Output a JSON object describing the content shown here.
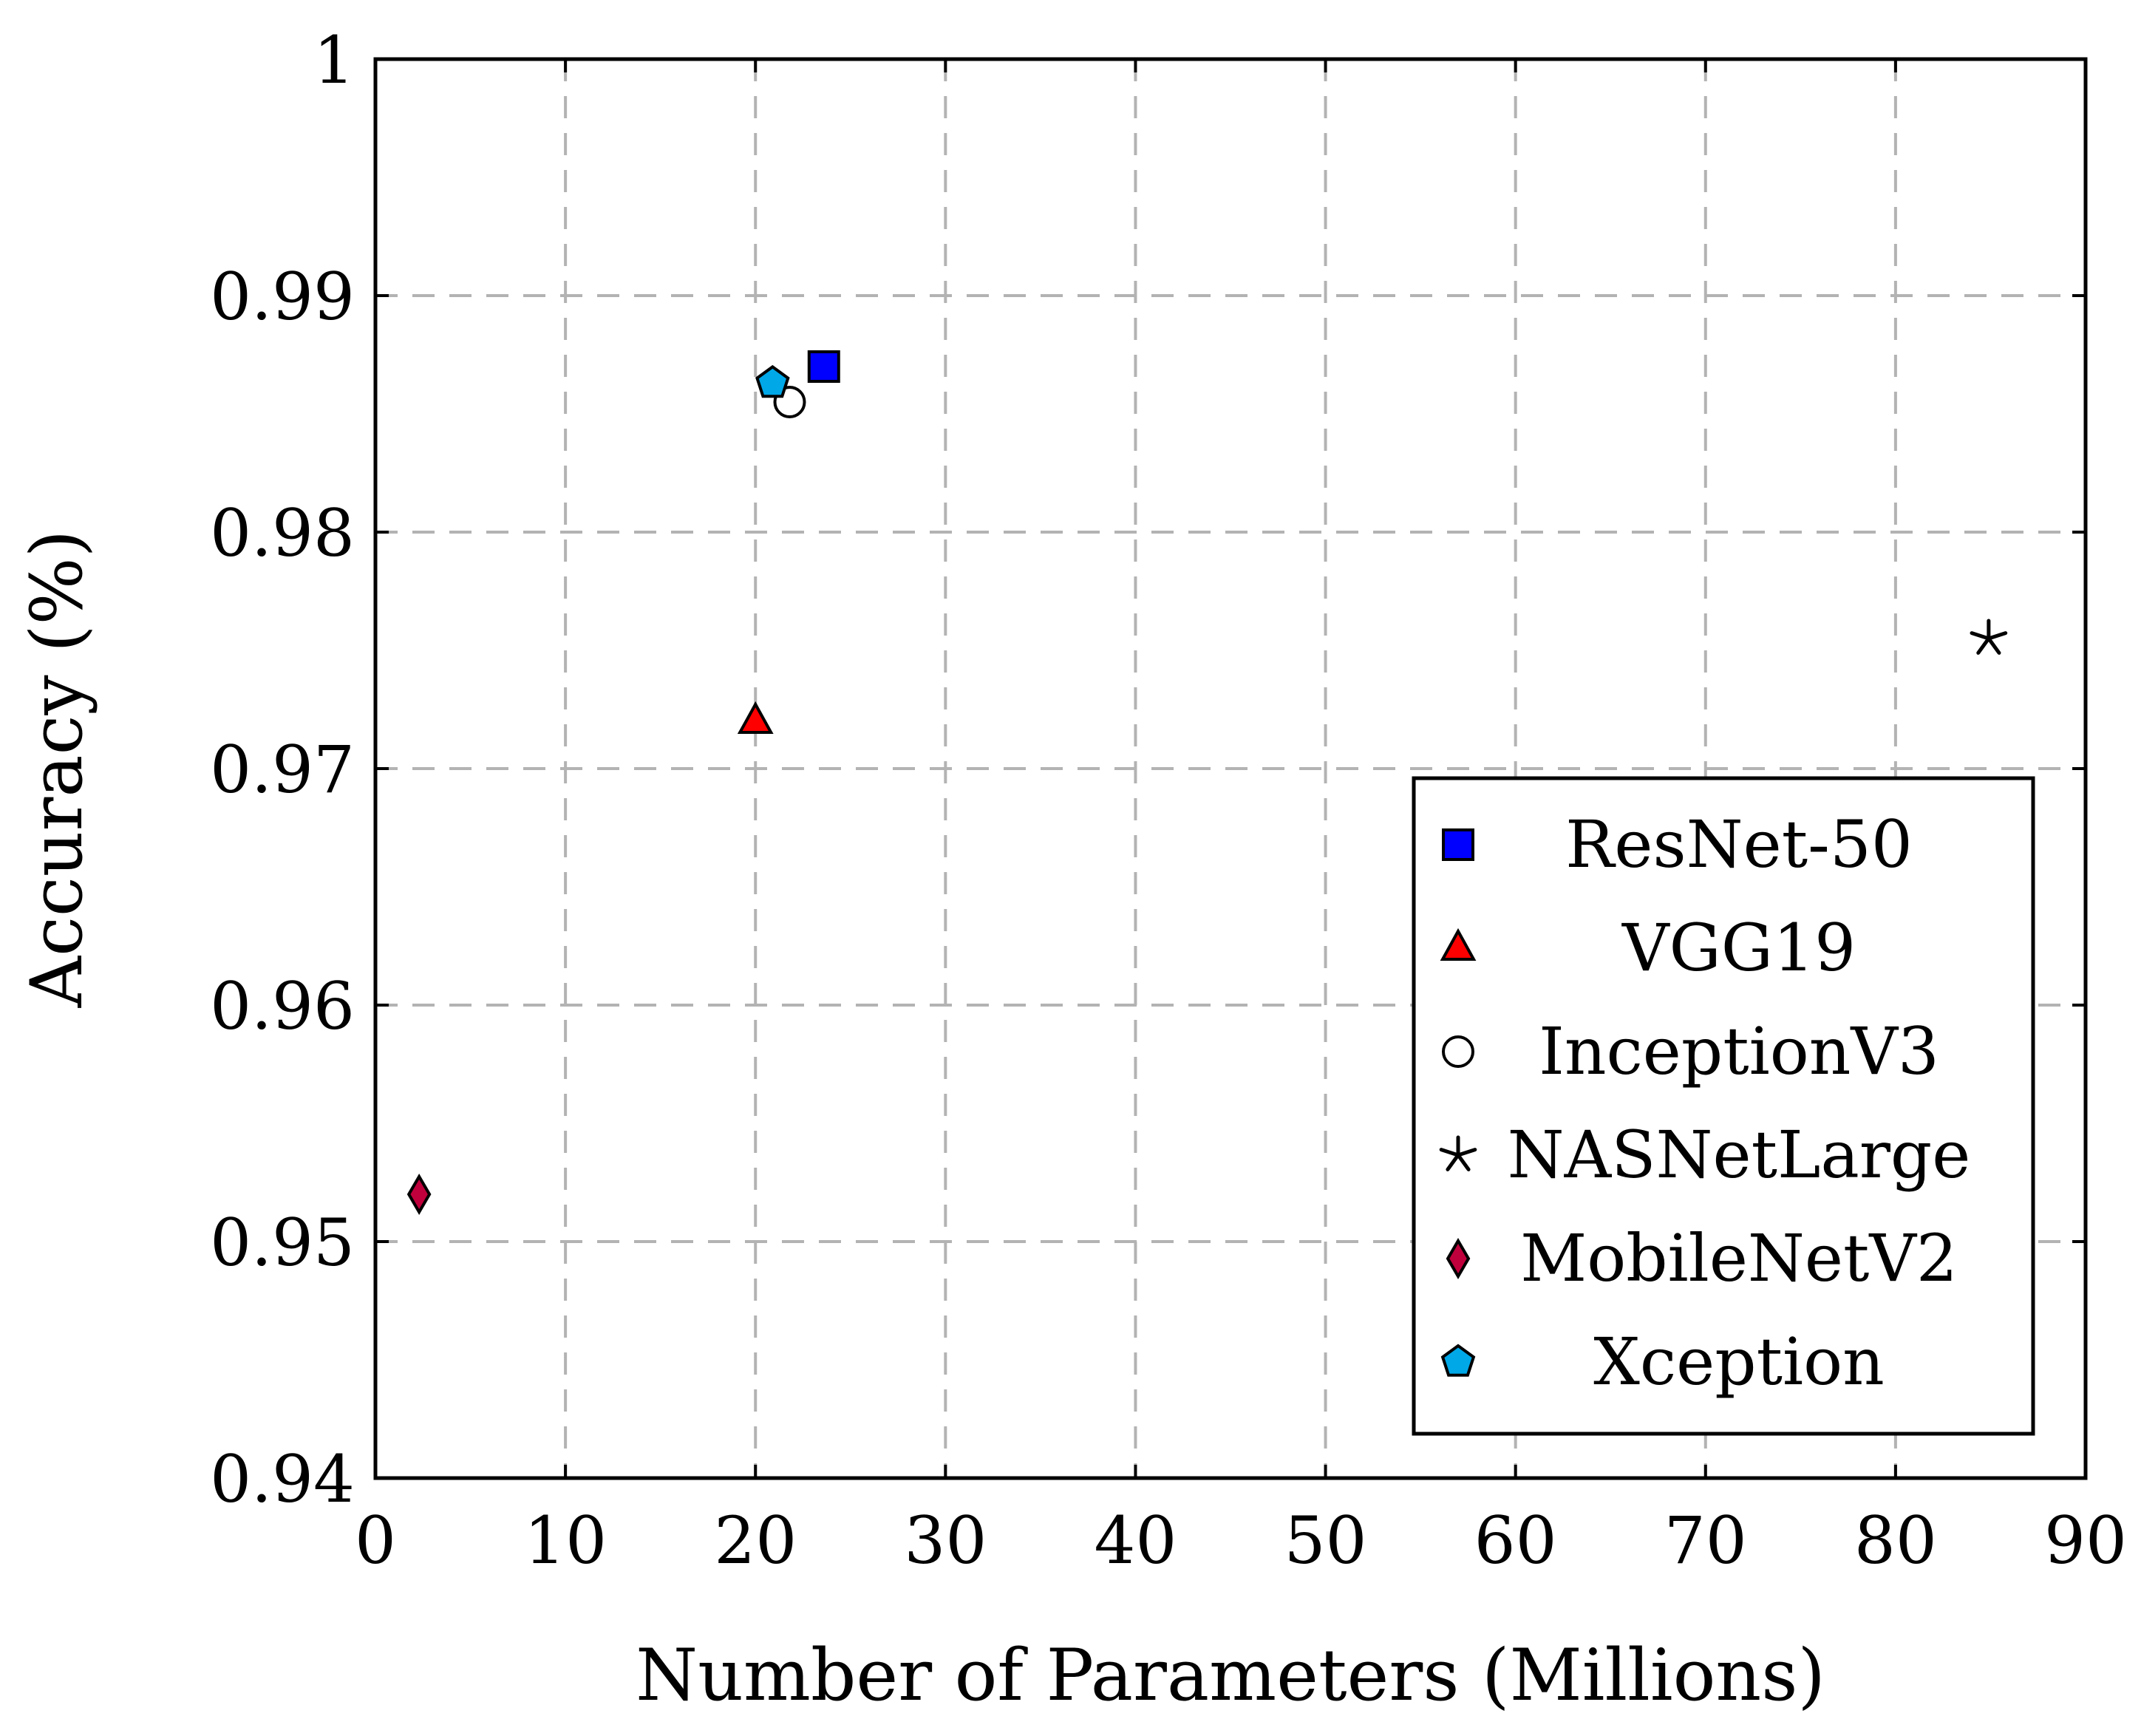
{
  "chart_data": {
    "type": "scatter",
    "title": "",
    "xlabel": "Number of Parameters (Millions)",
    "ylabel": "Accuracy (%)",
    "xlim": [
      0,
      90
    ],
    "ylim": [
      0.94,
      1
    ],
    "x_ticks": [
      0,
      10,
      20,
      30,
      40,
      50,
      60,
      70,
      80,
      90
    ],
    "y_ticks": [
      0.94,
      0.95,
      0.96,
      0.97,
      0.98,
      0.99,
      1
    ],
    "x_tick_labels": [
      "0",
      "10",
      "20",
      "30",
      "40",
      "50",
      "60",
      "70",
      "80",
      "90"
    ],
    "y_tick_labels": [
      "0.94",
      "0.95",
      "0.96",
      "0.97",
      "0.98",
      "0.99",
      "1"
    ],
    "grid": true,
    "legend_position": "bottom-right",
    "series": [
      {
        "name": "ResNet-50",
        "marker": "square",
        "color": "#0000ff",
        "x": [
          23.6
        ],
        "y": [
          0.987
        ]
      },
      {
        "name": "VGG19",
        "marker": "triangle",
        "color": "#ff0000",
        "x": [
          20.0
        ],
        "y": [
          0.972
        ]
      },
      {
        "name": "InceptionV3",
        "marker": "circle",
        "color": "#ffffff",
        "x": [
          21.8
        ],
        "y": [
          0.9855
        ]
      },
      {
        "name": "NASNetLarge",
        "marker": "star",
        "color": "#000000",
        "x": [
          84.9
        ],
        "y": [
          0.9755
        ]
      },
      {
        "name": "MobileNetV2",
        "marker": "diamond",
        "color": "#c0003c",
        "x": [
          2.3
        ],
        "y": [
          0.952
        ]
      },
      {
        "name": "Xception",
        "marker": "pentagon",
        "color": "#00a8e8",
        "x": [
          20.9
        ],
        "y": [
          0.9863
        ]
      }
    ]
  }
}
